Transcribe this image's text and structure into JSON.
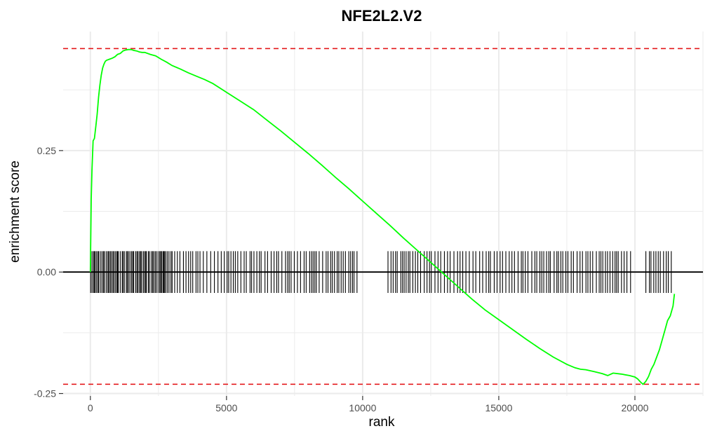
{
  "colors": {
    "curve": "#00ff00",
    "extrema_line": "#e41a1c",
    "hits": "#000000",
    "gridline": "#ebebeb",
    "zero_line": "#000000"
  },
  "chart_data": {
    "type": "line",
    "title": "NFE2L2.V2",
    "xlabel": "rank",
    "ylabel": "enrichment score",
    "xlim": [
      -1000,
      22500
    ],
    "ylim": [
      -0.255,
      0.495
    ],
    "x_ticks": [
      0,
      5000,
      10000,
      15000,
      20000
    ],
    "x_tick_labels": [
      "0",
      "5000",
      "10000",
      "15000",
      "20000"
    ],
    "y_ticks": [
      -0.25,
      0.0,
      0.25
    ],
    "y_tick_labels": [
      "-0.25",
      "0.00",
      "0.25"
    ],
    "grid": true,
    "legend": "none",
    "extrema_lines": [
      0.46,
      -0.231
    ],
    "hit_band": [
      -0.043,
      0.043
    ],
    "series": [
      {
        "x": [
          0,
          30,
          60,
          100,
          150,
          200,
          250,
          300,
          350,
          400,
          450,
          500,
          550,
          600,
          700,
          800,
          900,
          1000,
          1100,
          1200,
          1300,
          1400,
          1500,
          1600,
          1700,
          1800,
          1900,
          2000,
          2200,
          2400,
          2600,
          2800,
          3000,
          3300,
          3600,
          3900,
          4200,
          4500,
          5000,
          5500,
          6000,
          6500,
          7000,
          7500,
          8000,
          8500,
          9000,
          9500,
          10000,
          10500,
          11000,
          11500,
          12000,
          12500,
          13000,
          13500,
          14000,
          14500,
          15000,
          15500,
          16000,
          16500,
          17000,
          17500,
          17800,
          18000,
          18200,
          18500,
          18800,
          19000,
          19200,
          19500,
          19800,
          20000,
          20100,
          20200,
          20300,
          20400,
          20500,
          20600,
          20700,
          20800,
          20900,
          21000,
          21100,
          21200,
          21300,
          21400,
          21450
        ],
        "y": [
          0.0,
          0.15,
          0.21,
          0.27,
          0.275,
          0.3,
          0.325,
          0.36,
          0.385,
          0.405,
          0.42,
          0.428,
          0.434,
          0.436,
          0.438,
          0.44,
          0.443,
          0.448,
          0.45,
          0.455,
          0.457,
          0.458,
          0.458,
          0.456,
          0.455,
          0.453,
          0.452,
          0.452,
          0.448,
          0.445,
          0.438,
          0.432,
          0.425,
          0.418,
          0.41,
          0.403,
          0.396,
          0.388,
          0.37,
          0.352,
          0.334,
          0.312,
          0.29,
          0.267,
          0.244,
          0.22,
          0.195,
          0.171,
          0.146,
          0.121,
          0.096,
          0.07,
          0.045,
          0.02,
          -0.005,
          -0.03,
          -0.055,
          -0.078,
          -0.098,
          -0.118,
          -0.138,
          -0.157,
          -0.175,
          -0.19,
          -0.197,
          -0.2,
          -0.201,
          -0.205,
          -0.209,
          -0.213,
          -0.208,
          -0.21,
          -0.213,
          -0.216,
          -0.22,
          -0.226,
          -0.231,
          -0.225,
          -0.215,
          -0.2,
          -0.19,
          -0.175,
          -0.16,
          -0.14,
          -0.12,
          -0.1,
          -0.09,
          -0.07,
          -0.045
        ]
      }
    ]
  }
}
